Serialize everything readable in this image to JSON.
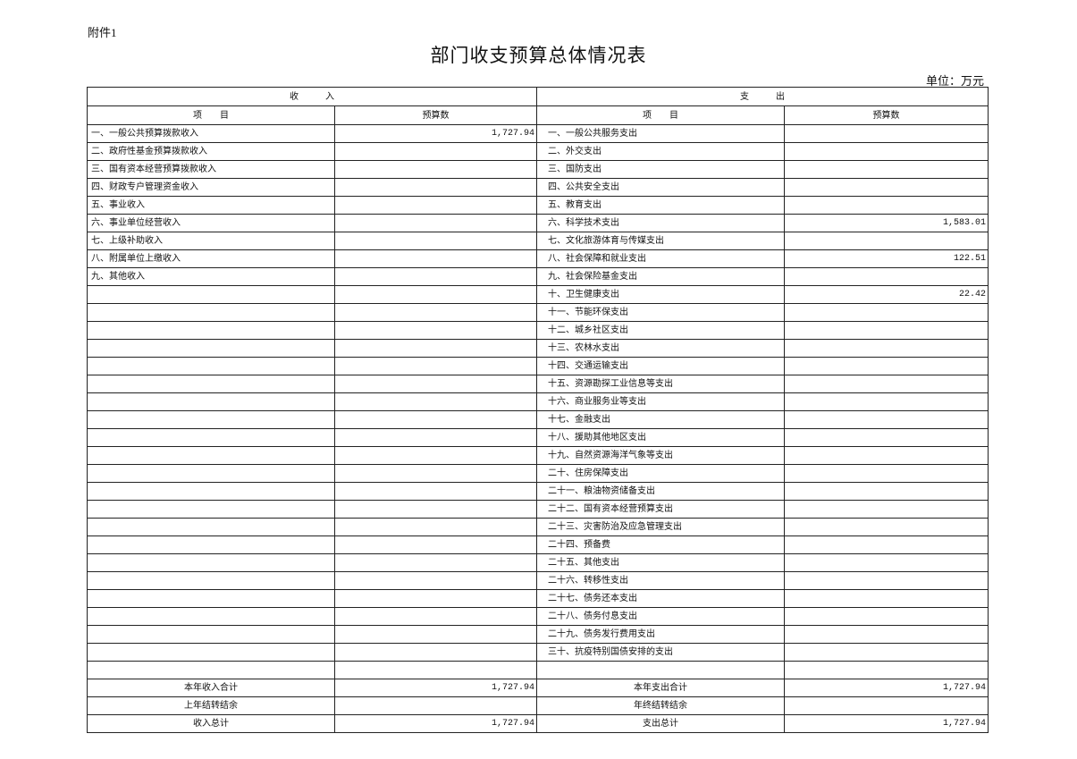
{
  "attachment_label": "附件1",
  "title": "部门收支预算总体情况表",
  "unit": "单位：万元",
  "headers": {
    "income": "收　　　入",
    "expense": "支　　　出",
    "item": "项　　目",
    "budget": "预算数"
  },
  "income_items": [
    {
      "name": "一、一般公共预算拨款收入",
      "value": "1,727.94"
    },
    {
      "name": "二、政府性基金预算拨款收入",
      "value": ""
    },
    {
      "name": "三、国有资本经营预算拨款收入",
      "value": ""
    },
    {
      "name": "四、财政专户管理资金收入",
      "value": ""
    },
    {
      "name": "五、事业收入",
      "value": ""
    },
    {
      "name": "六、事业单位经营收入",
      "value": ""
    },
    {
      "name": "七、上级补助收入",
      "value": ""
    },
    {
      "name": "八、附属单位上缴收入",
      "value": ""
    },
    {
      "name": "九、其他收入",
      "value": ""
    }
  ],
  "expense_items": [
    {
      "name": "一、一般公共服务支出",
      "value": ""
    },
    {
      "name": "二、外交支出",
      "value": ""
    },
    {
      "name": "三、国防支出",
      "value": ""
    },
    {
      "name": "四、公共安全支出",
      "value": ""
    },
    {
      "name": "五、教育支出",
      "value": ""
    },
    {
      "name": "六、科学技术支出",
      "value": "1,583.01"
    },
    {
      "name": "七、文化旅游体育与传媒支出",
      "value": ""
    },
    {
      "name": "八、社会保障和就业支出",
      "value": "122.51"
    },
    {
      "name": "九、社会保险基金支出",
      "value": ""
    },
    {
      "name": "十、卫生健康支出",
      "value": "22.42"
    },
    {
      "name": "十一、节能环保支出",
      "value": ""
    },
    {
      "name": "十二、城乡社区支出",
      "value": ""
    },
    {
      "name": "十三、农林水支出",
      "value": ""
    },
    {
      "name": "十四、交通运输支出",
      "value": ""
    },
    {
      "name": "十五、资源勘探工业信息等支出",
      "value": ""
    },
    {
      "name": "十六、商业服务业等支出",
      "value": ""
    },
    {
      "name": "十七、金融支出",
      "value": ""
    },
    {
      "name": "十八、援助其他地区支出",
      "value": ""
    },
    {
      "name": "十九、自然资源海洋气象等支出",
      "value": ""
    },
    {
      "name": "二十、住房保障支出",
      "value": ""
    },
    {
      "name": "二十一、粮油物资储备支出",
      "value": ""
    },
    {
      "name": "二十二、国有资本经营预算支出",
      "value": ""
    },
    {
      "name": "二十三、灾害防治及应急管理支出",
      "value": ""
    },
    {
      "name": "二十四、预备费",
      "value": ""
    },
    {
      "name": "二十五、其他支出",
      "value": ""
    },
    {
      "name": "二十六、转移性支出",
      "value": ""
    },
    {
      "name": "二十七、债务还本支出",
      "value": ""
    },
    {
      "name": "二十八、债务付息支出",
      "value": ""
    },
    {
      "name": "二十九、债务发行费用支出",
      "value": ""
    },
    {
      "name": "三十、抗疫特别国债安排的支出",
      "value": ""
    }
  ],
  "totals": [
    {
      "income_label": "本年收入合计",
      "income_value": "1,727.94",
      "expense_label": "本年支出合计",
      "expense_value": "1,727.94"
    },
    {
      "income_label": "上年结转结余",
      "income_value": "",
      "expense_label": "年终结转结余",
      "expense_value": ""
    },
    {
      "income_label": "收入总计",
      "income_value": "1,727.94",
      "expense_label": "支出总计",
      "expense_value": "1,727.94"
    }
  ]
}
